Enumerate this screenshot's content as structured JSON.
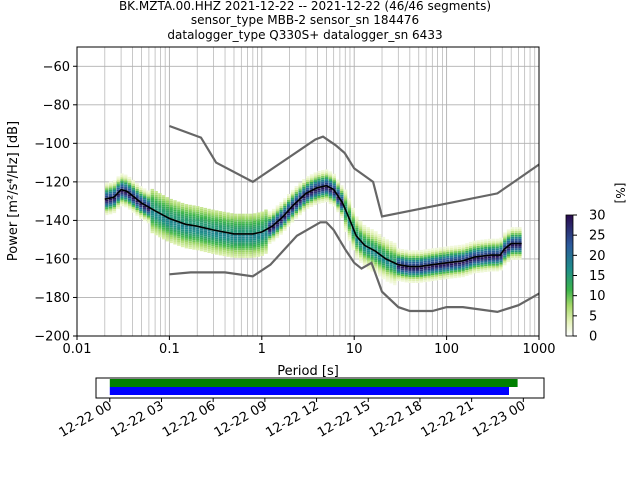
{
  "title": {
    "line1": "BK.MZTA.00.HHZ   2021-12-22 -- 2021-12-22  (46/46 segments)",
    "line2": "sensor_type MBB-2 sensor_sn 184476",
    "line3": "datalogger_type Q330S+ datalogger_sn 6433"
  },
  "chart_data": [
    {
      "type": "heatmap",
      "xlabel": "Period [s]",
      "ylabel": "Power [m²/s⁴/Hz] [dB]",
      "xscale": "log",
      "xlim": [
        0.01,
        1000
      ],
      "ylim": [
        -200,
        -50
      ],
      "grid": true,
      "x_ticks": [
        {
          "v": 0.01,
          "label": "0.01"
        },
        {
          "v": 0.1,
          "label": "0.1"
        },
        {
          "v": 1,
          "label": "1"
        },
        {
          "v": 10,
          "label": "10"
        },
        {
          "v": 100,
          "label": "100"
        },
        {
          "v": 1000,
          "label": "1000"
        }
      ],
      "y_ticks": [
        {
          "v": -60,
          "label": "−60"
        },
        {
          "v": -80,
          "label": "−80"
        },
        {
          "v": -100,
          "label": "−100"
        },
        {
          "v": -120,
          "label": "−120"
        },
        {
          "v": -140,
          "label": "−140"
        },
        {
          "v": -160,
          "label": "−160"
        },
        {
          "v": -180,
          "label": "−180"
        },
        {
          "v": -200,
          "label": "−200"
        }
      ],
      "mean_psd": [
        [
          0.02,
          -129
        ],
        [
          0.025,
          -128
        ],
        [
          0.03,
          -124
        ],
        [
          0.035,
          -125
        ],
        [
          0.05,
          -131
        ],
        [
          0.07,
          -135
        ],
        [
          0.1,
          -139
        ],
        [
          0.15,
          -142
        ],
        [
          0.2,
          -143
        ],
        [
          0.3,
          -145
        ],
        [
          0.5,
          -147
        ],
        [
          0.8,
          -147
        ],
        [
          1.0,
          -146
        ],
        [
          1.3,
          -143
        ],
        [
          1.7,
          -138
        ],
        [
          2.2,
          -132
        ],
        [
          3.0,
          -126
        ],
        [
          4.0,
          -123
        ],
        [
          5.0,
          -122
        ],
        [
          6.0,
          -124
        ],
        [
          7.5,
          -131
        ],
        [
          9.0,
          -140
        ],
        [
          10.5,
          -148
        ],
        [
          13.0,
          -153
        ],
        [
          17.0,
          -156
        ],
        [
          22.0,
          -160
        ],
        [
          30.0,
          -163
        ],
        [
          40.0,
          -164
        ],
        [
          50.0,
          -164
        ],
        [
          70.0,
          -163
        ],
        [
          100.0,
          -162
        ],
        [
          150.0,
          -161
        ],
        [
          200.0,
          -159
        ],
        [
          300.0,
          -158
        ],
        [
          380.0,
          -158
        ],
        [
          420.0,
          -155
        ],
        [
          500.0,
          -152
        ],
        [
          650.0,
          -152
        ]
      ],
      "nhnm": [
        [
          0.1,
          -91
        ],
        [
          0.22,
          -97
        ],
        [
          0.32,
          -110
        ],
        [
          0.8,
          -120
        ],
        [
          3.8,
          -98
        ],
        [
          4.6,
          -96.5
        ],
        [
          6.3,
          -101
        ],
        [
          7.9,
          -105
        ],
        [
          10,
          -113
        ],
        [
          16,
          -120
        ],
        [
          20,
          -138
        ],
        [
          354.8,
          -126
        ],
        [
          1000,
          -111
        ]
      ],
      "nlnm": [
        [
          0.1,
          -168
        ],
        [
          0.17,
          -167
        ],
        [
          0.4,
          -167
        ],
        [
          0.8,
          -169
        ],
        [
          1.24,
          -163
        ],
        [
          2.4,
          -148
        ],
        [
          4.3,
          -141
        ],
        [
          5.0,
          -141
        ],
        [
          6.0,
          -145
        ],
        [
          8.0,
          -155
        ],
        [
          10.0,
          -162
        ],
        [
          12.0,
          -165
        ],
        [
          15.4,
          -162
        ],
        [
          20.0,
          -177
        ],
        [
          30.0,
          -185
        ],
        [
          40.0,
          -187
        ],
        [
          70.0,
          -187
        ],
        [
          100.0,
          -185
        ],
        [
          150.0,
          -185
        ],
        [
          354.8,
          -187.5
        ],
        [
          600.0,
          -184
        ],
        [
          1000.0,
          -178
        ]
      ],
      "colorbar": {
        "label": "[%]",
        "range": [
          0,
          30
        ],
        "ticks": [
          {
            "v": 0,
            "label": "0"
          },
          {
            "v": 5,
            "label": "5"
          },
          {
            "v": 10,
            "label": "10"
          },
          {
            "v": 15,
            "label": "15"
          },
          {
            "v": 20,
            "label": "20"
          },
          {
            "v": 25,
            "label": "25"
          },
          {
            "v": 30,
            "label": "30"
          }
        ]
      }
    },
    {
      "type": "bar",
      "orientation": "horizontal",
      "xlim": [
        "2021-12-21T23:12",
        "2021-12-23T01:12"
      ],
      "series": [
        {
          "color": "#008000",
          "start": "2021-12-22T00:00",
          "end": "2021-12-22T23:40"
        },
        {
          "color": "#0000ff",
          "start": "2021-12-22T00:00",
          "end": "2021-12-22T23:10"
        }
      ],
      "tick_labels": [
        {
          "t": "2021-12-22T00:00",
          "label": "12-22 00"
        },
        {
          "t": "2021-12-22T03:00",
          "label": "12-22 03"
        },
        {
          "t": "2021-12-22T06:00",
          "label": "12-22 06"
        },
        {
          "t": "2021-12-22T09:00",
          "label": "12-22 09"
        },
        {
          "t": "2021-12-22T12:00",
          "label": "12-22 12"
        },
        {
          "t": "2021-12-22T15:00",
          "label": "12-22 15"
        },
        {
          "t": "2021-12-22T18:00",
          "label": "12-22 18"
        },
        {
          "t": "2021-12-22T21:00",
          "label": "12-22 21"
        },
        {
          "t": "2021-12-23T00:00",
          "label": "12-23 00"
        }
      ]
    }
  ]
}
